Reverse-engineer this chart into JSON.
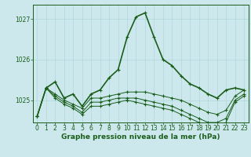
{
  "bg_color": "#cce8ed",
  "line_color": "#1a5e1a",
  "grid_color": "#b0d8de",
  "ylim": [
    1024.45,
    1027.35
  ],
  "xlim": [
    -0.5,
    23.5
  ],
  "yticks": [
    1025,
    1026,
    1027
  ],
  "xticks": [
    0,
    1,
    2,
    3,
    4,
    5,
    6,
    7,
    8,
    9,
    10,
    11,
    12,
    13,
    14,
    15,
    16,
    17,
    18,
    19,
    20,
    21,
    22,
    23
  ],
  "series1": [
    1024.6,
    1025.3,
    1025.45,
    1025.05,
    1025.15,
    1024.85,
    1025.15,
    1025.25,
    1025.55,
    1025.75,
    1026.55,
    1027.05,
    1027.15,
    1026.55,
    1026.0,
    1025.85,
    1025.6,
    1025.4,
    1025.3,
    1025.15,
    1025.05,
    1025.25,
    1025.3,
    1025.25
  ],
  "series2": [
    1024.6,
    1025.3,
    1025.15,
    1025.0,
    1024.9,
    1024.8,
    1025.05,
    1025.05,
    1025.1,
    1025.15,
    1025.2,
    1025.2,
    1025.2,
    1025.15,
    1025.1,
    1025.05,
    1025.0,
    1024.9,
    1024.8,
    1024.7,
    1024.65,
    1024.75,
    1025.1,
    1025.25
  ],
  "series3": [
    1024.6,
    1025.3,
    1025.1,
    1024.95,
    1024.85,
    1024.7,
    1024.95,
    1024.95,
    1025.0,
    1025.05,
    1025.05,
    1025.05,
    1025.0,
    1024.95,
    1024.9,
    1024.85,
    1024.75,
    1024.65,
    1024.55,
    1024.45,
    1024.45,
    1024.55,
    1025.0,
    1025.15
  ],
  "series4": [
    1024.6,
    1025.3,
    1025.05,
    1024.9,
    1024.8,
    1024.65,
    1024.85,
    1024.85,
    1024.9,
    1024.95,
    1025.0,
    1024.95,
    1024.9,
    1024.85,
    1024.8,
    1024.75,
    1024.65,
    1024.55,
    1024.45,
    1024.35,
    1024.35,
    1024.45,
    1024.95,
    1025.1
  ],
  "xlabel": "Graphe pression niveau de la mer (hPa)",
  "xlabel_fontsize": 6.5,
  "tick_fontsize": 5.5,
  "ytick_labels": [
    "1025",
    "1026",
    "1027"
  ]
}
